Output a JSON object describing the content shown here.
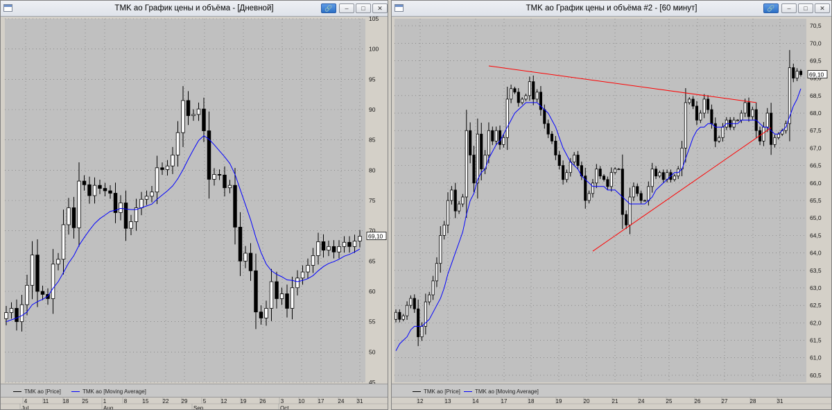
{
  "windows": [
    {
      "title": "TMK ао График цены и объёма - [Дневной]",
      "legend": [
        {
          "label": "TMK ao [Price]",
          "color": "#000000"
        },
        {
          "label": "TMK ao [Moving Average]",
          "color": "#0000ff"
        }
      ],
      "x_day_labels": [
        "4",
        "11",
        "18",
        "25",
        "1",
        "8",
        "15",
        "22",
        "29",
        "5",
        "12",
        "19",
        "26",
        "3",
        "10",
        "17",
        "24",
        "31"
      ],
      "x_month_labels": [
        "Jul",
        "Aug",
        "Sep",
        "Oct"
      ],
      "y_tick_labels": [
        "105",
        "100",
        "95",
        "90",
        "85",
        "80",
        "75",
        "70",
        "65",
        "60",
        "55",
        "50",
        "45"
      ],
      "last_price_label": "69,10"
    },
    {
      "title": "TMK ао График цены и объёма #2 - [60 минут]",
      "legend": [
        {
          "label": "TMK ao [Price]",
          "color": "#000000"
        },
        {
          "label": "TMK ao [Moving Average]",
          "color": "#0000ff"
        }
      ],
      "x_day_labels": [
        "12",
        "13",
        "14",
        "17",
        "18",
        "19",
        "20",
        "21",
        "24",
        "25",
        "26",
        "27",
        "28",
        "31"
      ],
      "y_tick_labels": [
        "70,5",
        "70,0",
        "69,5",
        "69,0",
        "68,5",
        "68,0",
        "67,5",
        "67,0",
        "66,5",
        "66,0",
        "65,5",
        "65,0",
        "64,5",
        "64,0",
        "63,5",
        "63,0",
        "62,5",
        "62,0",
        "61,5",
        "61,0",
        "60,5"
      ],
      "last_price_label": "69,10"
    }
  ],
  "chart_data": [
    {
      "type": "candlestick",
      "title": "TMK ао График цены и объёма - [Дневной]",
      "series": [
        {
          "name": "TMK ao [Price]",
          "close": [
            56.5,
            57.2,
            55.0,
            57.8,
            61.0,
            66.0,
            60.0,
            59.5,
            58.8,
            64.5,
            65.3,
            71.0,
            73.8,
            70.5,
            78.2,
            77.6,
            75.8,
            77.5,
            77.0,
            76.6,
            76.2,
            73.0,
            74.6,
            70.4,
            71.5,
            73.8,
            75.2,
            75.7,
            76.4,
            80.4,
            80.1,
            80.7,
            82.5,
            86.2,
            91.5,
            89.0,
            89.2,
            90.1,
            86.5,
            78.5,
            79.3,
            79.2,
            77.1,
            77.5,
            70.6,
            65.0,
            66.3,
            63.4,
            56.6,
            55.6,
            57.2,
            61.6,
            58.8,
            59.6,
            57.2,
            60.6,
            62.2,
            63.2,
            64.3,
            65.9,
            68.2,
            66.8,
            67.4,
            66.5,
            67.4,
            68.1,
            67.4,
            68.3,
            69.1
          ]
        },
        {
          "name": "TMK ao [Moving Average]",
          "values": [
            55.0,
            55.3,
            55.6,
            56.0,
            56.6,
            57.8,
            58.3,
            58.7,
            59.2,
            60.5,
            61.6,
            63.1,
            64.7,
            65.9,
            67.6,
            68.9,
            70.1,
            71.2,
            72.0,
            72.6,
            73.2,
            73.4,
            73.7,
            73.6,
            73.5,
            73.5,
            73.8,
            74.1,
            74.4,
            75.2,
            75.9,
            76.6,
            77.4,
            78.6,
            80.1,
            81.8,
            83.4,
            84.9,
            85.7,
            85.1,
            84.2,
            83.2,
            82.2,
            81.1,
            79.3,
            76.8,
            74.3,
            71.8,
            68.9,
            66.4,
            64.5,
            63.4,
            62.8,
            62.4,
            61.9,
            61.8,
            61.6,
            61.8,
            62.1,
            62.6,
            63.4,
            64.1,
            64.6,
            64.9,
            65.3,
            65.8,
            66.1,
            66.5,
            67.0
          ]
        }
      ],
      "x_day_labels": [
        "4",
        "11",
        "18",
        "25",
        "1",
        "8",
        "15",
        "22",
        "29",
        "5",
        "12",
        "19",
        "26",
        "3",
        "10",
        "17",
        "24",
        "31"
      ],
      "x_month_labels": [
        "Jul",
        "Aug",
        "Sep",
        "Oct"
      ],
      "ylim": [
        45,
        105
      ]
    },
    {
      "type": "candlestick",
      "title": "TMK ао График цены и объёма #2 - [60 минут]",
      "series": [
        {
          "name": "TMK ao [Price]",
          "close": [
            62.3,
            62.1,
            62.2,
            62.5,
            62.7,
            62.4,
            61.6,
            61.9,
            62.6,
            62.8,
            63.2,
            63.7,
            64.5,
            64.8,
            65.5,
            65.8,
            65.2,
            65.4,
            65.6,
            67.5,
            66.8,
            66.0,
            67.4,
            66.4,
            66.8,
            67.5,
            67.2,
            67.5,
            67.1,
            67.3,
            68.4,
            68.7,
            68.6,
            68.3,
            68.4,
            68.5,
            68.9,
            68.4,
            68.6,
            68.1,
            67.7,
            67.4,
            67.2,
            66.8,
            66.5,
            66.1,
            66.3,
            66.6,
            66.8,
            66.5,
            66.2,
            65.5,
            65.7,
            66.0,
            66.4,
            66.2,
            66.1,
            65.9,
            66.3,
            66.4,
            66.4,
            65.1,
            64.8,
            65.6,
            65.9,
            65.7,
            65.5,
            65.5,
            65.9,
            66.4,
            66.2,
            66.3,
            66.1,
            66.3,
            66.1,
            66.2,
            66.4,
            67.0,
            68.3,
            68.4,
            68.2,
            67.8,
            68.0,
            68.4,
            68.1,
            67.7,
            67.2,
            67.3,
            67.6,
            67.8,
            67.6,
            67.8,
            67.8,
            68.0,
            68.3,
            67.9,
            68.1,
            67.5,
            67.2,
            67.6,
            68.0,
            67.1,
            67.3,
            67.4,
            67.5,
            67.7,
            69.3,
            69.0,
            69.2,
            69.1
          ]
        },
        {
          "name": "TMK ao [Moving Average]",
          "values": [
            61.2,
            61.4,
            61.5,
            61.6,
            61.8,
            61.9,
            61.9,
            61.9,
            62.0,
            62.1,
            62.3,
            62.5,
            62.7,
            63.0,
            63.4,
            63.7,
            64.0,
            64.3,
            64.6,
            65.1,
            65.5,
            65.7,
            66.1,
            66.3,
            66.4,
            66.7,
            66.9,
            67.1,
            67.2,
            67.4,
            67.6,
            67.8,
            68.0,
            68.1,
            68.2,
            68.3,
            68.3,
            68.3,
            68.3,
            68.2,
            68.1,
            68.0,
            67.8,
            67.6,
            67.3,
            67.0,
            66.8,
            66.6,
            66.5,
            66.4,
            66.2,
            66.1,
            66.0,
            65.9,
            65.9,
            65.9,
            65.9,
            65.8,
            65.8,
            65.8,
            65.7,
            65.6,
            65.5,
            65.4,
            65.4,
            65.4,
            65.4,
            65.4,
            65.5,
            65.6,
            65.8,
            65.9,
            66.0,
            66.1,
            66.2,
            66.3,
            66.3,
            66.4,
            66.7,
            67.0,
            67.3,
            67.5,
            67.6,
            67.6,
            67.7,
            67.7,
            67.6,
            67.6,
            67.6,
            67.7,
            67.7,
            67.7,
            67.7,
            67.8,
            67.8,
            67.8,
            67.8,
            67.8,
            67.7,
            67.6,
            67.6,
            67.5,
            67.4,
            67.4,
            67.5,
            67.6,
            67.9,
            68.2,
            68.4,
            68.7
          ]
        }
      ],
      "trendlines": [
        {
          "from_bar": 25,
          "from_value": 69.35,
          "to_bar": 97,
          "to_value": 68.3,
          "color": "#ff0000"
        },
        {
          "from_bar": 53,
          "from_value": 64.05,
          "to_bar": 101,
          "to_value": 67.58,
          "color": "#ff0000"
        }
      ],
      "x_day_labels": [
        "12",
        "13",
        "14",
        "17",
        "18",
        "19",
        "20",
        "21",
        "24",
        "25",
        "26",
        "27",
        "28",
        "31"
      ],
      "ylim": [
        60.3,
        70.7
      ]
    }
  ]
}
